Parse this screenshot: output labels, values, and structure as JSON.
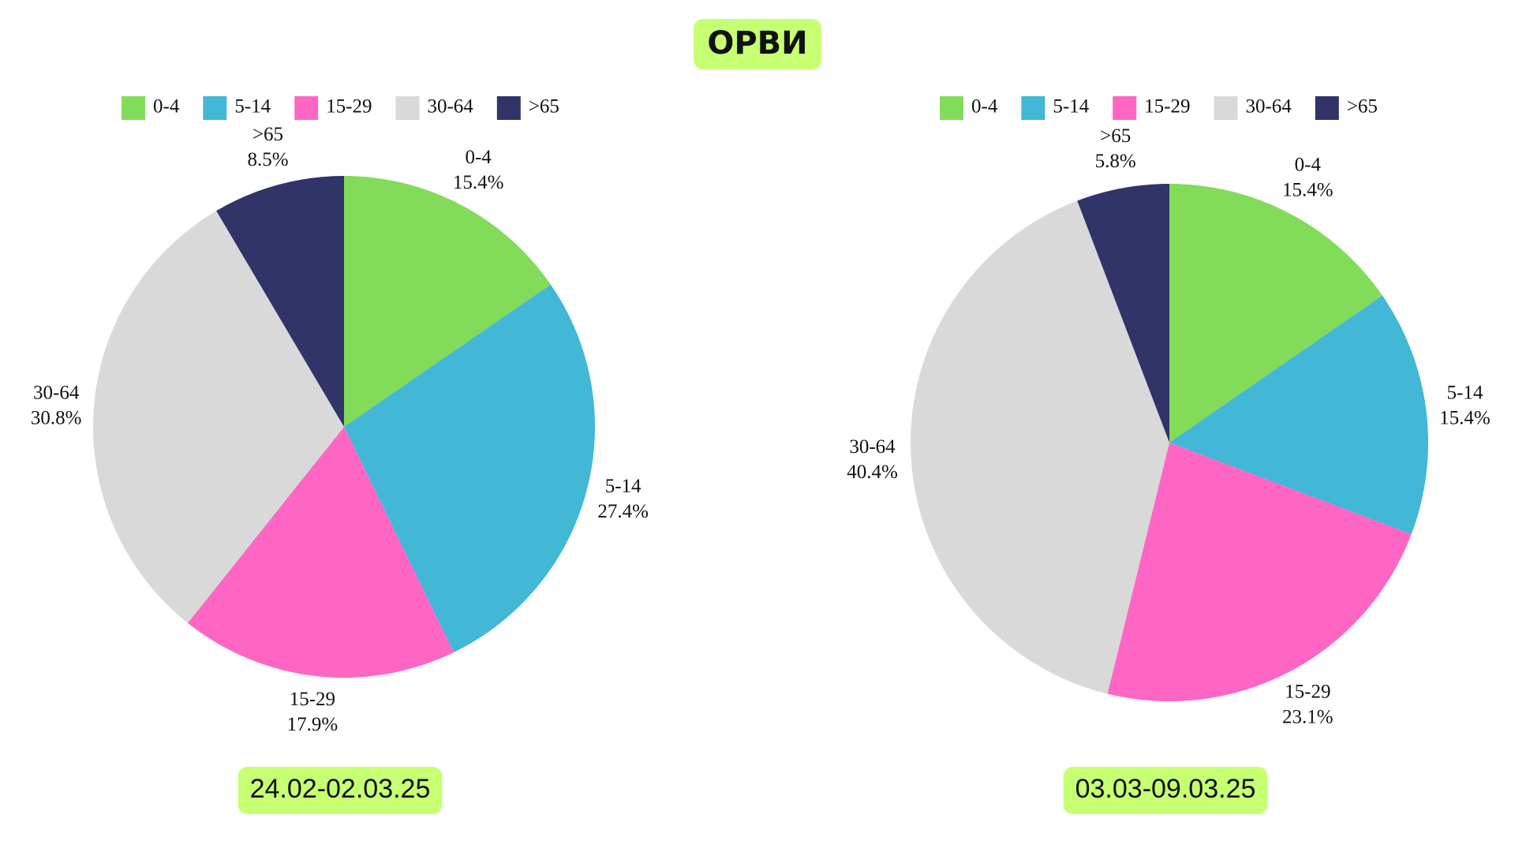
{
  "title": "ОРВИ",
  "chart_data": [
    {
      "type": "pie",
      "subtitle": "24.02-02.03.25",
      "categories": [
        "0-4",
        "5-14",
        "15-29",
        "30-64",
        ">65"
      ],
      "values": [
        15.4,
        27.4,
        17.9,
        30.8,
        8.5
      ],
      "value_labels": [
        "15.4%",
        "27.4%",
        "17.9%",
        "30.8%",
        "8.5%"
      ],
      "colors": [
        "#82dc59",
        "#42b7d6",
        "#ff66c4",
        "#d9d9d9",
        "#303468"
      ],
      "legend": "top"
    },
    {
      "type": "pie",
      "subtitle": "03.03-09.03.25",
      "categories": [
        "0-4",
        "5-14",
        "15-29",
        "30-64",
        ">65"
      ],
      "values": [
        15.4,
        15.4,
        23.1,
        40.4,
        5.8
      ],
      "value_labels": [
        "15.4%",
        "15.4%",
        "23.1%",
        "40.4%",
        "5.8%"
      ],
      "colors": [
        "#82dc59",
        "#42b7d6",
        "#ff66c4",
        "#d9d9d9",
        "#303468"
      ],
      "legend": "top"
    }
  ]
}
